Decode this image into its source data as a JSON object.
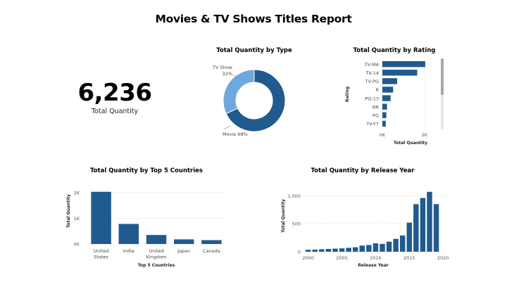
{
  "report": {
    "title": "Movies & TV Shows Titles Report"
  },
  "kpi": {
    "value": "6,236",
    "label": "Total Quantity"
  },
  "colors": {
    "dark_blue": "#215A8E",
    "light_blue": "#6FA8DC",
    "grid": "#C8C8C8"
  },
  "chart_data": [
    {
      "id": "by_type",
      "type": "pie",
      "title": "Total Quantity by Type",
      "donut": true,
      "slices": [
        {
          "label": "Movie",
          "percent": 68,
          "display": "Movie 68%"
        },
        {
          "label": "TV Show",
          "percent": 32,
          "display_line1": "TV Show",
          "display_line2": "32%"
        }
      ]
    },
    {
      "id": "by_rating",
      "type": "bar",
      "orientation": "horizontal",
      "title": "Total Quantity by Rating",
      "categories": [
        "TV-MA",
        "TV-14",
        "TV-PG",
        "R",
        "PG-13",
        "NR",
        "PG",
        "TV-Y7"
      ],
      "values": [
        2030,
        1650,
        700,
        510,
        390,
        220,
        190,
        160
      ],
      "xlabel": "Total Quantity",
      "ylabel": "Rating",
      "xticks": [
        "0K",
        "2K"
      ],
      "xlim": [
        0,
        2400
      ],
      "grid": true
    },
    {
      "id": "by_country",
      "type": "bar",
      "title": "Total Quantity by Top 5 Countries",
      "categories": [
        [
          "United",
          "States"
        ],
        [
          "India"
        ],
        [
          "United",
          "Kingdom"
        ],
        [
          "Japan"
        ],
        [
          "Canada"
        ]
      ],
      "values": [
        2030,
        780,
        350,
        180,
        150
      ],
      "xlabel": "Top 5 Countries",
      "ylabel": "Total Quantity",
      "yticks": [
        {
          "v": 0,
          "t": "0K"
        },
        {
          "v": 1000,
          "t": "1K"
        },
        {
          "v": 2000,
          "t": "2K"
        }
      ],
      "ylim": [
        0,
        2050
      ],
      "grid": true
    },
    {
      "id": "by_year",
      "type": "bar",
      "title": "Total Quantity by Release Year",
      "x": [
        2000,
        2001,
        2002,
        2003,
        2004,
        2005,
        2006,
        2007,
        2008,
        2009,
        2010,
        2011,
        2012,
        2013,
        2014,
        2015,
        2016,
        2017,
        2018,
        2019
      ],
      "values": [
        35,
        38,
        45,
        50,
        55,
        60,
        70,
        80,
        110,
        120,
        150,
        140,
        180,
        230,
        290,
        520,
        850,
        960,
        1070,
        850
      ],
      "xlabel": "Release Year",
      "ylabel": "Total Quantity",
      "xticks": [
        2000,
        2005,
        2010,
        2015,
        2020
      ],
      "yticks": [
        {
          "v": 0,
          "t": "0"
        },
        {
          "v": 500,
          "t": "500"
        },
        {
          "v": 1000,
          "t": "1,000"
        }
      ],
      "xlim": [
        1999.3,
        2020.3
      ],
      "ylim": [
        0,
        1080
      ],
      "grid": true
    }
  ]
}
